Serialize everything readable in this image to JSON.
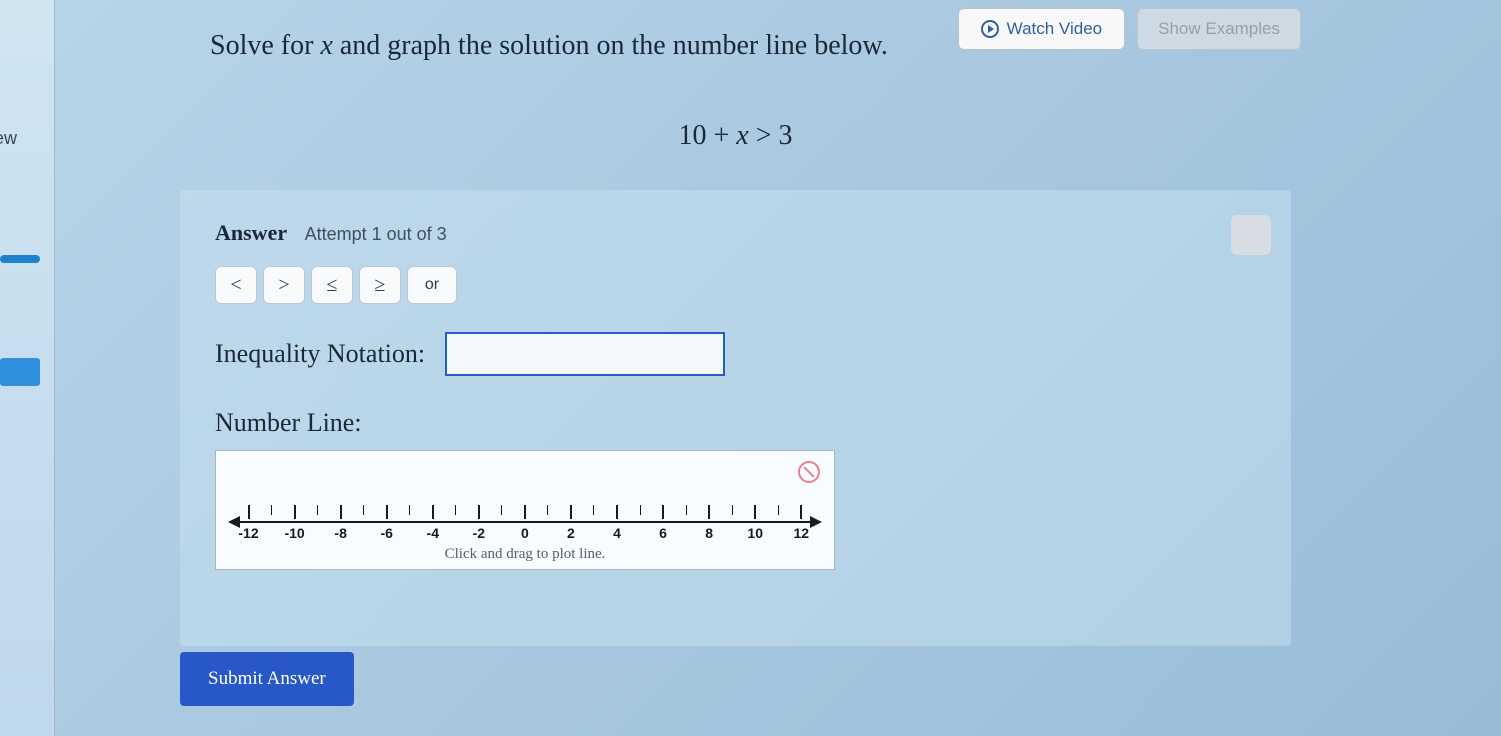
{
  "sidebar": {
    "label": "iew"
  },
  "header": {
    "watch_video": "Watch Video",
    "show_examples": "Show Examples"
  },
  "problem": {
    "prefix": "Solve for ",
    "variable": "x",
    "suffix": " and graph the solution on the number line below.",
    "equation_lhs": "10 + ",
    "equation_var": "x",
    "equation_op": " > ",
    "equation_rhs": "3"
  },
  "answer": {
    "label": "Answer",
    "attempt": "Attempt 1 out of 3",
    "operators": {
      "lt": "<",
      "gt": ">",
      "lte": "≤",
      "gte": "≥",
      "or": "or"
    },
    "inequality_label": "Inequality Notation:",
    "inequality_value": "",
    "numberline_label": "Number Line:",
    "numberline_hint": "Click and drag to plot line.",
    "numberline": {
      "min": -12,
      "max": 12,
      "major_step": 2,
      "ticks": [
        -12,
        -10,
        -8,
        -6,
        -4,
        -2,
        0,
        2,
        4,
        6,
        8,
        10,
        12
      ]
    }
  },
  "submit": "Submit Answer"
}
